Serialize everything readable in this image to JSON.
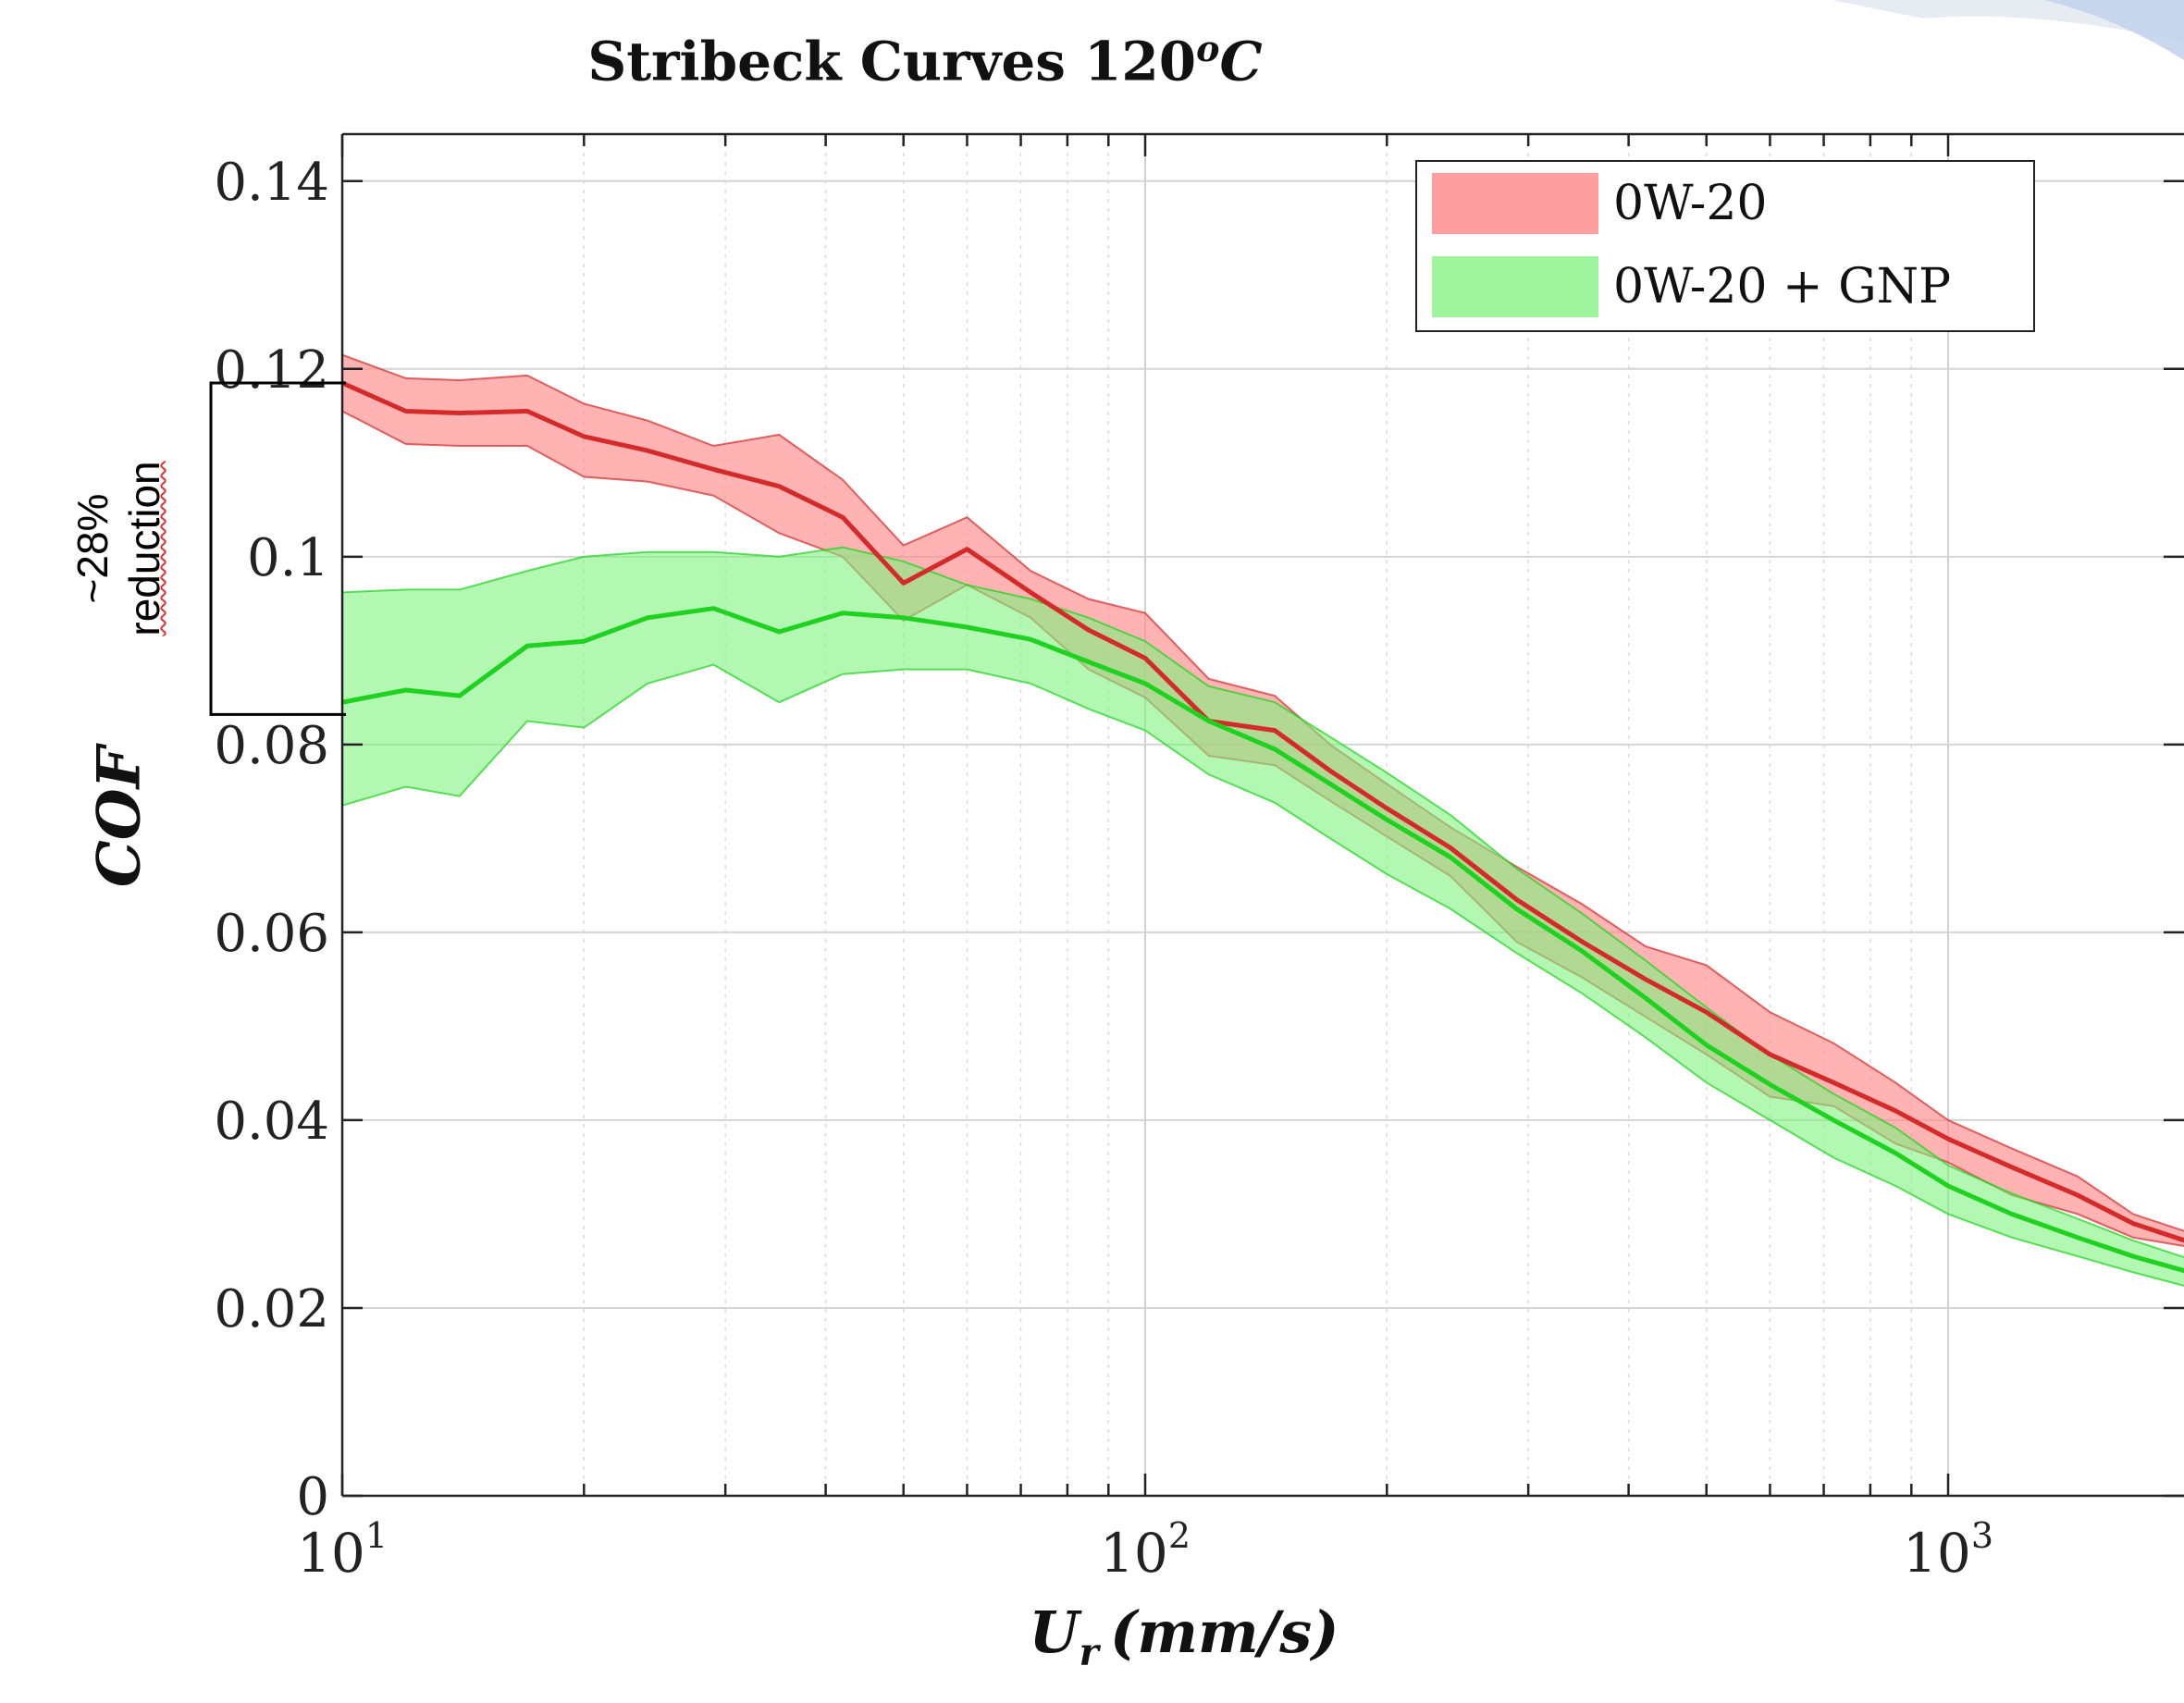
{
  "chart_data": {
    "type": "area",
    "title": "Stribeck Curves 120",
    "title_superscript": "o",
    "title_suffix": "C",
    "xlabel_main": "U",
    "xlabel_sub": "r",
    "xlabel_units": "(mm/s)",
    "ylabel": "COF",
    "xscale": "log",
    "xlim": [
      10,
      2000
    ],
    "ylim": [
      0,
      0.145
    ],
    "grid": true,
    "legend_position": "top-right",
    "x_ticks": [
      {
        "base": "10",
        "exp": "1"
      },
      {
        "base": "10",
        "exp": "2"
      },
      {
        "base": "10",
        "exp": "3"
      }
    ],
    "y_ticks": [
      "0",
      "0.02",
      "0.04",
      "0.06",
      "0.08",
      "0.1",
      "0.12",
      "0.14"
    ],
    "annotation": {
      "line1": "~28%",
      "line2": "reduction",
      "bracket_y": [
        0.0832,
        0.1185
      ]
    },
    "series": [
      {
        "name": "0W-20",
        "line_color": "#d42a2a",
        "band_color": "#ff8a8a",
        "x": [
          10,
          12,
          14,
          17,
          20,
          24,
          29,
          35,
          42,
          50,
          60,
          72,
          85,
          100,
          120,
          145,
          170,
          200,
          240,
          290,
          350,
          420,
          500,
          600,
          720,
          860,
          1000,
          1200,
          1450,
          1700,
          2000
        ],
        "y": [
          0.1185,
          0.1155,
          0.1153,
          0.1155,
          0.1128,
          0.1113,
          0.1093,
          0.1075,
          0.1042,
          0.0972,
          0.1008,
          0.0962,
          0.0922,
          0.0892,
          0.0825,
          0.0815,
          0.0772,
          0.0732,
          0.069,
          0.0635,
          0.059,
          0.055,
          0.0515,
          0.047,
          0.044,
          0.041,
          0.038,
          0.035,
          0.032,
          0.029,
          0.027
        ],
        "upper": [
          0.1215,
          0.119,
          0.1188,
          0.1193,
          0.1163,
          0.1145,
          0.1118,
          0.113,
          0.1082,
          0.1012,
          0.1042,
          0.0985,
          0.0955,
          0.094,
          0.087,
          0.0852,
          0.08,
          0.0758,
          0.0712,
          0.067,
          0.063,
          0.0585,
          0.0565,
          0.0515,
          0.0482,
          0.044,
          0.04,
          0.037,
          0.034,
          0.03,
          0.028
        ],
        "lower": [
          0.1155,
          0.112,
          0.1118,
          0.1118,
          0.1085,
          0.108,
          0.1065,
          0.1025,
          0.1,
          0.0932,
          0.097,
          0.0935,
          0.088,
          0.085,
          0.0788,
          0.0778,
          0.074,
          0.0702,
          0.066,
          0.059,
          0.0552,
          0.051,
          0.047,
          0.0425,
          0.0415,
          0.0375,
          0.0355,
          0.032,
          0.03,
          0.0275,
          0.0265
        ]
      },
      {
        "name": "0W-20 + GNP",
        "line_color": "#1fd21f",
        "band_color": "#7ef27e",
        "x": [
          10,
          12,
          14,
          17,
          20,
          24,
          29,
          35,
          42,
          50,
          60,
          72,
          85,
          100,
          120,
          145,
          170,
          200,
          240,
          290,
          350,
          420,
          500,
          600,
          720,
          860,
          1000,
          1200,
          1450,
          1700,
          2000
        ],
        "y": [
          0.0845,
          0.0858,
          0.0852,
          0.0905,
          0.091,
          0.0935,
          0.0945,
          0.092,
          0.094,
          0.0935,
          0.0925,
          0.0912,
          0.0888,
          0.0865,
          0.0825,
          0.0795,
          0.0758,
          0.072,
          0.068,
          0.0625,
          0.058,
          0.053,
          0.048,
          0.0438,
          0.04,
          0.0365,
          0.033,
          0.03,
          0.0275,
          0.0255,
          0.0238
        ],
        "upper": [
          0.0962,
          0.0965,
          0.0965,
          0.0985,
          0.1,
          0.1005,
          0.1005,
          0.1,
          0.101,
          0.0995,
          0.097,
          0.0955,
          0.0935,
          0.091,
          0.0862,
          0.0845,
          0.0808,
          0.077,
          0.0725,
          0.0668,
          0.062,
          0.057,
          0.052,
          0.047,
          0.0428,
          0.0392,
          0.0352,
          0.0322,
          0.0295,
          0.0272,
          0.0252
        ],
        "lower": [
          0.0735,
          0.0755,
          0.0745,
          0.0825,
          0.0818,
          0.0865,
          0.0885,
          0.0845,
          0.0875,
          0.088,
          0.088,
          0.0865,
          0.0838,
          0.0815,
          0.0768,
          0.0738,
          0.07,
          0.0662,
          0.0625,
          0.0578,
          0.0535,
          0.0488,
          0.044,
          0.04,
          0.036,
          0.033,
          0.03,
          0.0275,
          0.0255,
          0.0238,
          0.0222
        ]
      }
    ]
  }
}
